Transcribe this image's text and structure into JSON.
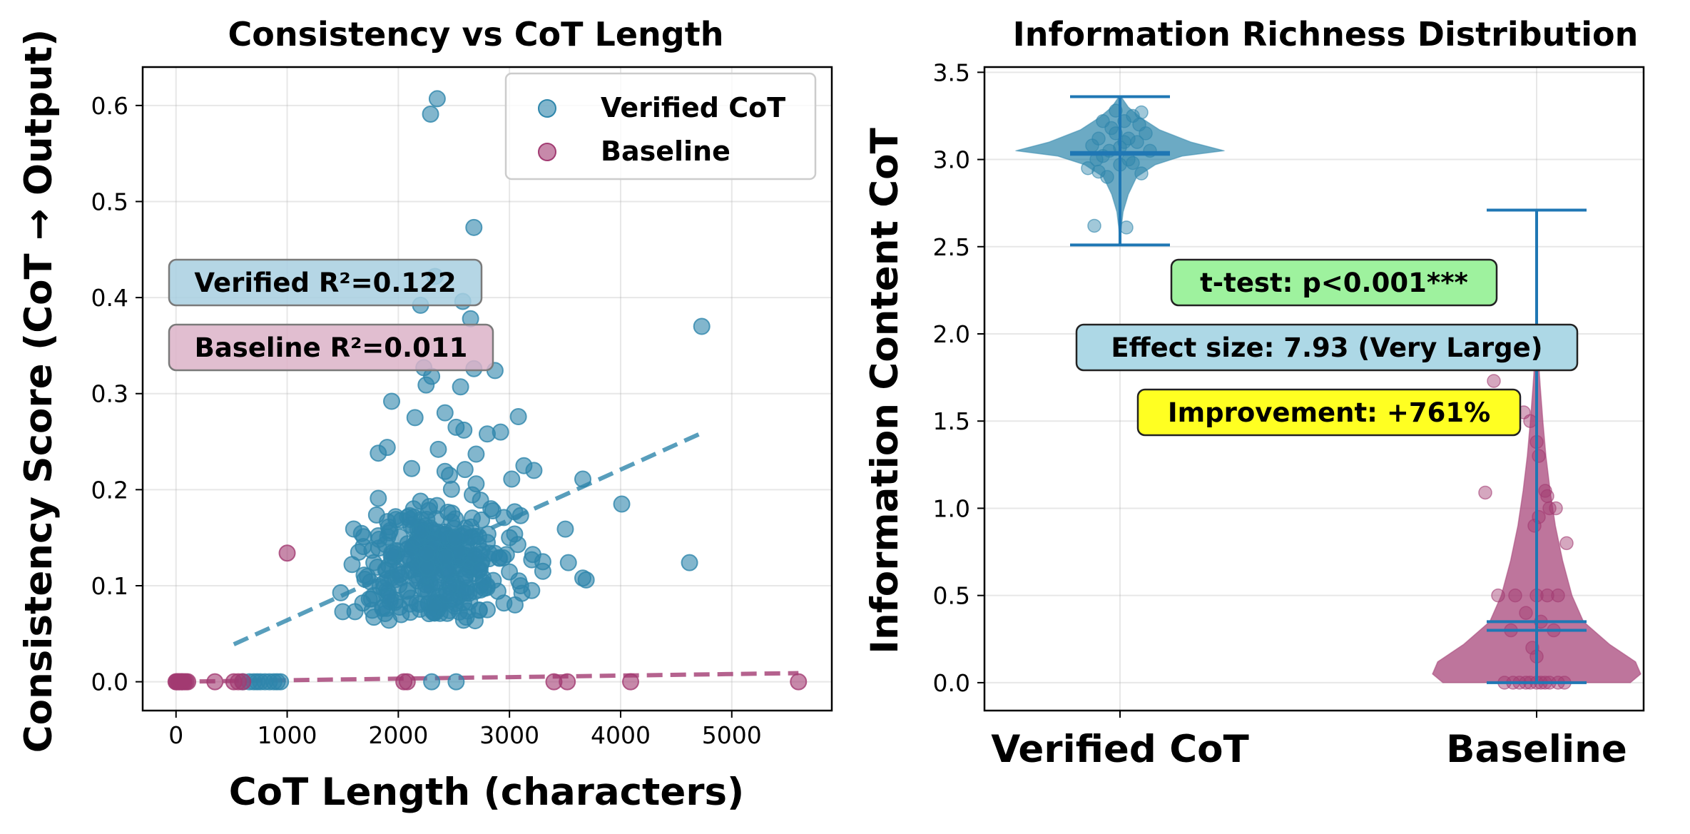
{
  "chart_data": [
    {
      "type": "scatter",
      "title": "Consistency vs CoT Length",
      "xlabel": "CoT Length (characters)",
      "ylabel": "Consistency Score (CoT → Output)",
      "xlim": [
        -300,
        5900
      ],
      "ylim": [
        -0.03,
        0.64
      ],
      "xticks": [
        0,
        1000,
        2000,
        3000,
        4000,
        5000
      ],
      "yticks": [
        0.0,
        0.1,
        0.2,
        0.3,
        0.4,
        0.5,
        0.6
      ],
      "xtick_labels": [
        "0",
        "1000",
        "2000",
        "3000",
        "4000",
        "5000"
      ],
      "ytick_labels": [
        "0.0",
        "0.1",
        "0.2",
        "0.3",
        "0.4",
        "0.5",
        "0.6"
      ],
      "grid": true,
      "legend_position": "upper-right",
      "series": [
        {
          "name": "Verified CoT",
          "color": "#2e86ab",
          "points": [
            [
              2350,
              0.607
            ],
            [
              2290,
              0.591
            ],
            [
              2680,
              0.473
            ],
            [
              2330,
              0.422
            ],
            [
              2650,
              0.378
            ],
            [
              2200,
              0.392
            ],
            [
              2580,
              0.396
            ],
            [
              4730,
              0.37
            ],
            [
              2870,
              0.324
            ],
            [
              2230,
              0.327
            ],
            [
              2300,
              0.318
            ],
            [
              2680,
              0.326
            ],
            [
              2560,
              0.307
            ],
            [
              2250,
              0.309
            ],
            [
              1940,
              0.292
            ],
            [
              2150,
              0.275
            ],
            [
              2420,
              0.28
            ],
            [
              2520,
              0.265
            ],
            [
              3080,
              0.276
            ],
            [
              2800,
              0.258
            ],
            [
              2590,
              0.262
            ],
            [
              2920,
              0.26
            ],
            [
              1820,
              0.238
            ],
            [
              2360,
              0.242
            ],
            [
              1900,
              0.244
            ],
            [
              2700,
              0.237
            ],
            [
              2120,
              0.222
            ],
            [
              2420,
              0.219
            ],
            [
              2600,
              0.221
            ],
            [
              3130,
              0.225
            ],
            [
              3220,
              0.22
            ],
            [
              3020,
              0.211
            ],
            [
              3660,
              0.211
            ],
            [
              2460,
              0.215
            ],
            [
              2700,
              0.206
            ],
            [
              4010,
              0.185
            ],
            [
              2850,
              0.178
            ],
            [
              2740,
              0.189
            ],
            [
              1820,
              0.191
            ],
            [
              2200,
              0.188
            ],
            [
              3100,
              0.173
            ],
            [
              2950,
              0.171
            ],
            [
              3000,
              0.15
            ],
            [
              2800,
              0.145
            ],
            [
              3300,
              0.125
            ],
            [
              3200,
              0.127
            ],
            [
              3530,
              0.124
            ],
            [
              4620,
              0.124
            ],
            [
              3660,
              0.108
            ],
            [
              3690,
              0.106
            ],
            [
              3100,
              0.1
            ],
            [
              3050,
              0.08
            ],
            [
              1500,
              0.073
            ],
            [
              1610,
              0.073
            ],
            [
              1680,
              0.082
            ],
            [
              1750,
              0.104
            ],
            [
              1780,
              0.124
            ],
            [
              1820,
              0.152
            ],
            [
              2950,
              0.082
            ],
            [
              2800,
              0.075
            ],
            [
              3200,
              0.095
            ],
            [
              3300,
              0.115
            ],
            [
              2300,
              0.0
            ],
            [
              2520,
              0.0
            ],
            [
              660,
              0.0
            ],
            [
              700,
              0.0
            ],
            [
              760,
              0.0
            ],
            [
              800,
              0.0
            ],
            [
              840,
              0.0
            ],
            [
              880,
              0.0
            ],
            [
              910,
              0.0
            ],
            [
              600,
              0.0
            ],
            [
              730,
              0.0
            ],
            [
              940,
              0.0
            ]
          ],
          "cluster": {
            "center_x": 2350,
            "center_y": 0.122,
            "spread_x": 330,
            "spread_y": 0.034,
            "count": 320
          },
          "trend": {
            "x": [
              520,
              4730
            ],
            "y": [
              0.039,
              0.259
            ]
          }
        },
        {
          "name": "Baseline",
          "color": "#a23b72",
          "points": [
            [
              0,
              0.0
            ],
            [
              15,
              0.0
            ],
            [
              30,
              0.0
            ],
            [
              45,
              0.0
            ],
            [
              60,
              0.0
            ],
            [
              75,
              0.0
            ],
            [
              90,
              0.0
            ],
            [
              105,
              0.0
            ],
            [
              5,
              0.0
            ],
            [
              25,
              0.0
            ],
            [
              55,
              0.0
            ],
            [
              350,
              0.0
            ],
            [
              520,
              0.0
            ],
            [
              560,
              0.0
            ],
            [
              600,
              0.0
            ],
            [
              1000,
              0.134
            ],
            [
              2050,
              0.0
            ],
            [
              2080,
              0.0
            ],
            [
              3400,
              0.0
            ],
            [
              3520,
              0.0
            ],
            [
              4090,
              0.0
            ],
            [
              5600,
              0.0
            ]
          ],
          "trend": {
            "x": [
              0,
              5600
            ],
            "y": [
              0.0,
              0.009
            ]
          }
        }
      ],
      "annotations": [
        {
          "text": "Verified R²=0.122",
          "color": "#a8cfe0"
        },
        {
          "text": "Baseline R²=0.011",
          "color": "#dcb3c8"
        }
      ]
    },
    {
      "type": "violin",
      "title": "Information Richness Distribution",
      "ylabel": "Information Content CoT",
      "ylim": [
        -0.16,
        3.53
      ],
      "yticks": [
        0.0,
        0.5,
        1.0,
        1.5,
        2.0,
        2.5,
        3.0,
        3.5
      ],
      "ytick_labels": [
        "0.0",
        "0.5",
        "1.0",
        "1.5",
        "2.0",
        "2.5",
        "3.0",
        "3.5"
      ],
      "categories": [
        "Verified CoT",
        "Baseline"
      ],
      "grid": true,
      "series": [
        {
          "name": "Verified CoT",
          "color": "#2e86ab",
          "min": 2.51,
          "max": 3.36,
          "mean": 3.04,
          "median": 3.03,
          "density_profile": [
            [
              2.51,
              0.003
            ],
            [
              2.6,
              0.01
            ],
            [
              2.7,
              0.03
            ],
            [
              2.8,
              0.08
            ],
            [
              2.9,
              0.16
            ],
            [
              2.97,
              0.34
            ],
            [
              3.02,
              0.6
            ],
            [
              3.05,
              1.0
            ],
            [
              3.1,
              0.68
            ],
            [
              3.17,
              0.38
            ],
            [
              3.24,
              0.2
            ],
            [
              3.3,
              0.08
            ],
            [
              3.36,
              0.01
            ]
          ],
          "jitter_points": [
            [
              -0.12,
              2.62
            ],
            [
              0.03,
              2.61
            ],
            [
              -0.15,
              2.95
            ],
            [
              -0.1,
              2.93
            ],
            [
              -0.08,
              3.02
            ],
            [
              -0.05,
              3.05
            ],
            [
              0.0,
              3.07
            ],
            [
              0.04,
              3.12
            ],
            [
              0.08,
              3.1
            ],
            [
              -0.1,
              3.12
            ],
            [
              -0.04,
              3.18
            ],
            [
              0.02,
              3.22
            ],
            [
              0.06,
              3.25
            ],
            [
              0.1,
              3.27
            ],
            [
              -0.02,
              3.28
            ],
            [
              0.12,
              3.15
            ],
            [
              0.14,
              3.05
            ],
            [
              -0.13,
              3.08
            ],
            [
              0.06,
              2.98
            ],
            [
              -0.06,
              2.9
            ],
            [
              0.1,
              2.92
            ],
            [
              0.0,
              2.97
            ],
            [
              -0.02,
              3.15
            ],
            [
              0.04,
              3.0
            ],
            [
              0.09,
              3.2
            ],
            [
              -0.08,
              3.22
            ],
            [
              0.02,
              3.1
            ],
            [
              -0.11,
              3.0
            ]
          ]
        },
        {
          "name": "Baseline",
          "color": "#a23b72",
          "min": 0.0,
          "max": 2.71,
          "mean": 0.35,
          "median": 0.3,
          "density_profile": [
            [
              0.0,
              0.9
            ],
            [
              0.05,
              1.0
            ],
            [
              0.12,
              0.95
            ],
            [
              0.22,
              0.7
            ],
            [
              0.35,
              0.45
            ],
            [
              0.5,
              0.34
            ],
            [
              0.7,
              0.25
            ],
            [
              0.9,
              0.18
            ],
            [
              1.1,
              0.13
            ],
            [
              1.3,
              0.09
            ],
            [
              1.5,
              0.06
            ],
            [
              1.7,
              0.035
            ],
            [
              1.9,
              0.012
            ],
            [
              2.1,
              0.004
            ],
            [
              2.71,
              0.001
            ]
          ],
          "jitter_points": [
            [
              -0.2,
              1.73
            ],
            [
              -0.06,
              1.55
            ],
            [
              -0.03,
              1.5
            ],
            [
              0.0,
              1.38
            ],
            [
              0.01,
              1.3
            ],
            [
              0.04,
              1.1
            ],
            [
              -0.24,
              1.09
            ],
            [
              0.05,
              1.07
            ],
            [
              0.09,
              1.0
            ],
            [
              0.06,
              1.0
            ],
            [
              0.01,
              0.95
            ],
            [
              -0.01,
              0.9
            ],
            [
              0.14,
              0.8
            ],
            [
              -0.18,
              0.5
            ],
            [
              -0.1,
              0.5
            ],
            [
              0.0,
              0.5
            ],
            [
              0.05,
              0.5
            ],
            [
              0.1,
              0.5
            ],
            [
              -0.05,
              0.4
            ],
            [
              0.02,
              0.35
            ],
            [
              -0.12,
              0.3
            ],
            [
              0.08,
              0.3
            ],
            [
              -0.02,
              0.2
            ],
            [
              0.0,
              0.15
            ],
            [
              -0.15,
              0.0
            ],
            [
              -0.08,
              0.0
            ],
            [
              -0.03,
              0.0
            ],
            [
              0.02,
              0.0
            ],
            [
              0.06,
              0.0
            ],
            [
              0.1,
              0.0
            ],
            [
              0.13,
              0.0
            ],
            [
              -0.11,
              0.0
            ],
            [
              -0.05,
              0.0
            ],
            [
              0.0,
              0.0
            ],
            [
              0.04,
              0.0
            ]
          ]
        }
      ],
      "stats_line_color": "#1f77b4",
      "annotations": [
        {
          "text": "t-test: p<0.001***",
          "color": "#9ef29e"
        },
        {
          "text": "Effect size: 7.93 (Very Large)",
          "color": "#add8e6"
        },
        {
          "text": "Improvement: +761%",
          "color": "#ffff22"
        }
      ]
    }
  ]
}
